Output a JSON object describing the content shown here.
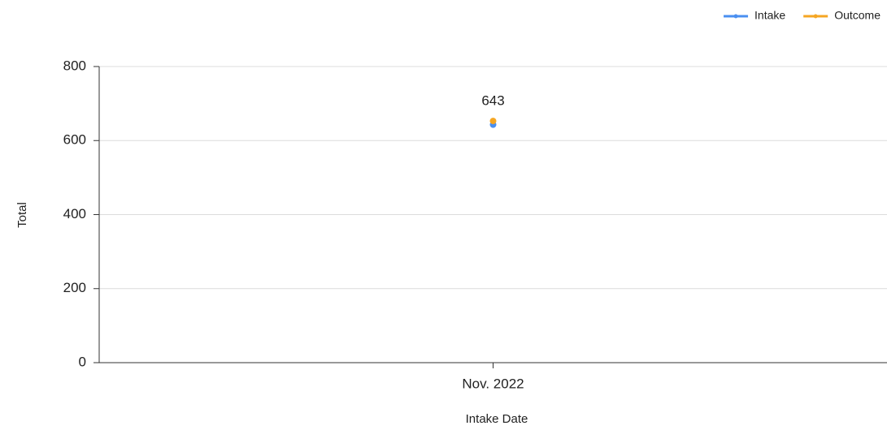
{
  "chart_data": {
    "type": "line",
    "x_label": "Intake Date",
    "y_label": "Total",
    "categories": [
      "Nov. 2022"
    ],
    "series": [
      {
        "name": "Intake",
        "color": "#4a8ff0",
        "values": [
          643
        ],
        "show_labels": true
      },
      {
        "name": "Outcome",
        "color": "#f5a623",
        "values": [
          653
        ],
        "show_labels": false
      }
    ],
    "ylim": [
      0,
      800
    ],
    "yticks": [
      0,
      200,
      400,
      600,
      800
    ],
    "grid": true,
    "legend": "top-right"
  }
}
